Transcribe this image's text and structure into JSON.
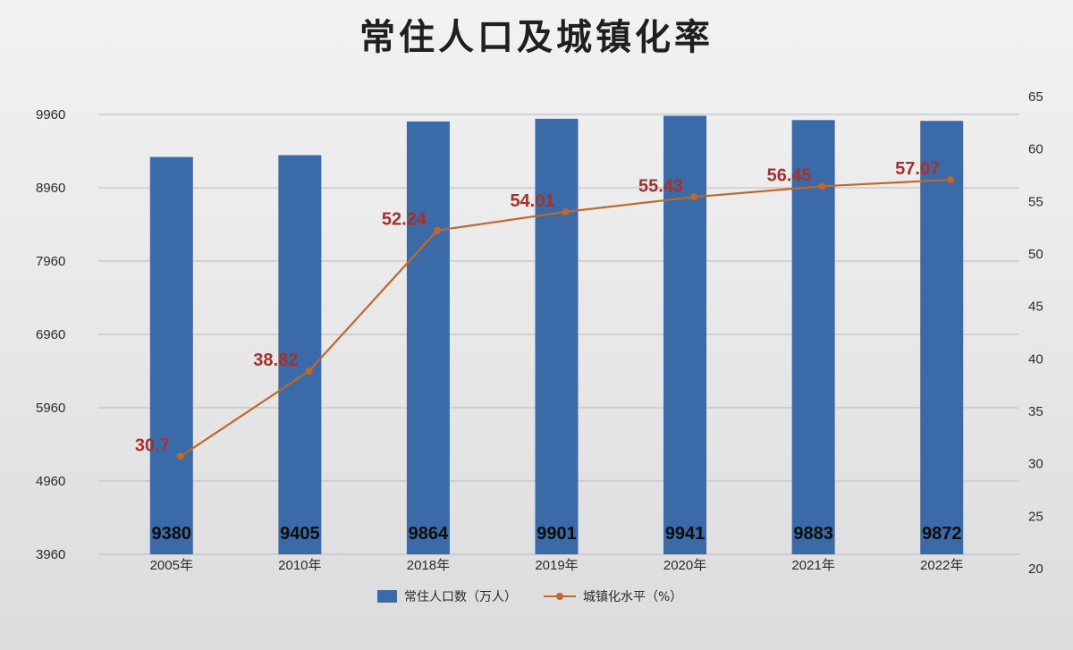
{
  "chart_data": {
    "type": "bar",
    "title": "常住人口及城镇化率",
    "categories": [
      "2005年",
      "2010年",
      "2018年",
      "2019年",
      "2020年",
      "2021年",
      "2022年"
    ],
    "series": [
      {
        "name": "常住人口数（万人）",
        "type": "bar",
        "axis": "left",
        "values": [
          9380,
          9405,
          9864,
          9901,
          9941,
          9883,
          9872
        ],
        "color": "#3b6aa8"
      },
      {
        "name": "城镇化水平（%）",
        "type": "line",
        "axis": "right",
        "values": [
          30.7,
          38.82,
          52.24,
          54.01,
          55.43,
          56.45,
          57.07
        ],
        "color": "#c0672c",
        "label_color": "#a3322c"
      }
    ],
    "y_left": {
      "ticks": [
        3960,
        4960,
        5960,
        6960,
        7960,
        8960,
        9960
      ],
      "ylim": [
        3960,
        9960
      ]
    },
    "y_right": {
      "ticks": [
        20,
        25,
        30,
        35,
        40,
        45,
        50,
        55,
        60,
        65
      ],
      "ylim": [
        20,
        65
      ]
    },
    "grid": true,
    "legend_position": "bottom"
  }
}
